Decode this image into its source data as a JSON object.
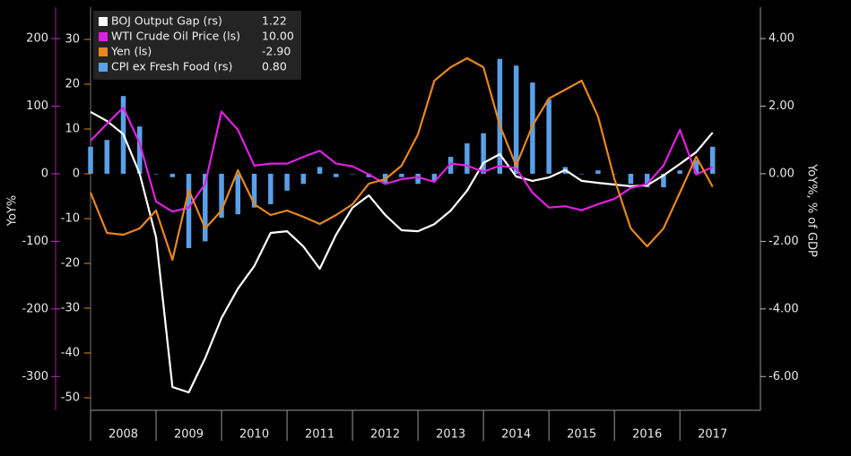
{
  "chart_data": {
    "type": "line",
    "y_label": "YoY%",
    "y2_label": "YoY%, % of GDP",
    "x": [
      2008,
      2008.25,
      2008.5,
      2008.75,
      2009,
      2009.25,
      2009.5,
      2009.75,
      2010,
      2010.25,
      2010.5,
      2010.75,
      2011,
      2011.25,
      2011.5,
      2011.75,
      2012,
      2012.25,
      2012.5,
      2012.75,
      2013,
      2013.25,
      2013.5,
      2013.75,
      2014,
      2014.25,
      2014.5,
      2014.75,
      2015,
      2015.25,
      2015.5,
      2015.75,
      2016,
      2016.25,
      2016.5,
      2016.75,
      2017,
      2017.25,
      2017.5
    ],
    "xlim": [
      2008,
      2018.23
    ],
    "xticks": [
      2008,
      2009,
      2010,
      2011,
      2012,
      2013,
      2014,
      2015,
      2016,
      2017
    ],
    "ylim": [
      -350,
      246.5
    ],
    "yticks": [
      -300,
      -200,
      -100,
      0,
      100,
      200
    ],
    "y3lim": [
      -52.8,
      37.2
    ],
    "y3ticks": [
      -50,
      -40,
      -30,
      -20,
      -10,
      0,
      10,
      20,
      30
    ],
    "y2lim": [
      -7.0,
      4.93
    ],
    "y2ticks": [
      {
        "value": -6,
        "label": "-6.00"
      },
      {
        "value": -4,
        "label": "-4.00"
      },
      {
        "value": -2,
        "label": "-2.00"
      },
      {
        "value": 0,
        "label": "0.00"
      },
      {
        "value": 2,
        "label": "2.00"
      },
      {
        "value": 4,
        "label": "4.00"
      }
    ],
    "grid": false,
    "legend": "top-left",
    "series": [
      {
        "name": "BOJ Output Gap (rs)",
        "legend_value": "1.22",
        "color": "#ffffff",
        "kind": "line",
        "axis": "y2",
        "values": [
          1.83,
          1.56,
          1.17,
          0,
          -1.88,
          -6.31,
          -6.47,
          -5.46,
          -4.27,
          -3.4,
          -2.73,
          -1.75,
          -1.7,
          -2.15,
          -2.81,
          -1.8,
          -1.0,
          -0.64,
          -1.22,
          -1.67,
          -1.7,
          -1.49,
          -1.09,
          -0.5,
          0.32,
          0.58,
          -0.08,
          -0.21,
          -0.11,
          0.11,
          -0.21,
          -0.27,
          -0.32,
          -0.37,
          -0.34,
          -0.05,
          0.29,
          0.64,
          1.22
        ]
      },
      {
        "name": "WTI Crude Oil Price (ls)",
        "legend_value": "10.00",
        "color": "#e020e0",
        "kind": "line",
        "axis": "y",
        "values": [
          49,
          74,
          98,
          45,
          -41,
          -56,
          -50,
          -15,
          92,
          65,
          12,
          15,
          15,
          25,
          34,
          15,
          11,
          -1,
          -15,
          -8,
          -5,
          -12,
          15,
          12,
          3,
          12,
          8,
          -28,
          -50,
          -48,
          -54,
          -45,
          -37,
          -21,
          -15,
          12,
          65,
          -1,
          10
        ]
      },
      {
        "name": "Yen (ls)",
        "legend_value": "-2.90",
        "color": "#e8871e",
        "kind": "line",
        "axis": "y3",
        "values": [
          -4.2,
          -13.2,
          -13.6,
          -12.2,
          -8.2,
          -19.2,
          -3.6,
          -12.2,
          -8.2,
          0.8,
          -6.8,
          -9.2,
          -8.2,
          -9.6,
          -11.2,
          -9.2,
          -6.8,
          -2.2,
          -1.2,
          1.8,
          8.8,
          20.8,
          23.8,
          25.8,
          23.8,
          10.8,
          1.8,
          10.8,
          16.8,
          18.8,
          20.8,
          12.8,
          -1.2,
          -12.2,
          -16.2,
          -12.2,
          -4.2,
          3.8,
          -2.9
        ]
      },
      {
        "name": "CPI ex Fresh Food (rs)",
        "legend_value": "0.80",
        "color": "#5aa0e8",
        "kind": "bar",
        "axis": "y2",
        "values": [
          0.8,
          1.0,
          2.3,
          1.4,
          0.0,
          -0.1,
          -2.2,
          -2.0,
          -1.3,
          -1.2,
          -1.0,
          -0.9,
          -0.5,
          -0.3,
          0.2,
          -0.1,
          0.0,
          -0.1,
          -0.3,
          -0.1,
          -0.3,
          -0.2,
          0.5,
          0.9,
          1.2,
          3.4,
          3.2,
          2.7,
          2.2,
          0.2,
          0.0,
          0.1,
          0.0,
          -0.3,
          -0.4,
          -0.4,
          0.1,
          0.4,
          0.8
        ]
      }
    ]
  }
}
